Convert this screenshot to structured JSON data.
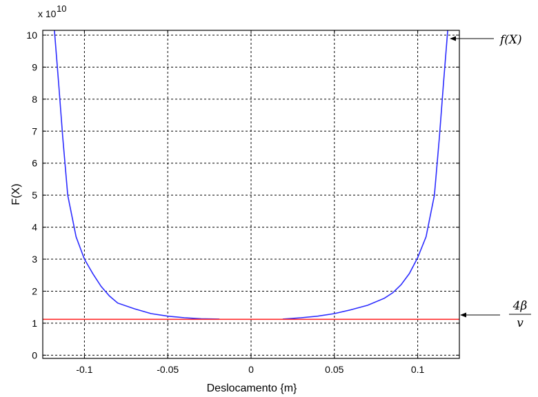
{
  "chart_data": {
    "type": "line",
    "xlabel": "Deslocamento {m}",
    "ylabel": "F(X)",
    "y_multiplier_base": "x 10",
    "y_multiplier_exponent": "10",
    "xlim": [
      -0.125,
      0.125
    ],
    "ylim": [
      -0.1,
      10.15
    ],
    "x_ticks": [
      -0.1,
      -0.05,
      0,
      0.05,
      0.1
    ],
    "x_tick_labels": [
      "-0.1",
      "-0.05",
      "0",
      "0.05",
      "0.1"
    ],
    "y_ticks": [
      0,
      1,
      2,
      3,
      4,
      5,
      6,
      7,
      8,
      9,
      10
    ],
    "y_tick_labels": [
      "0",
      "1",
      "2",
      "3",
      "4",
      "5",
      "6",
      "7",
      "8",
      "9",
      "10"
    ],
    "grid": true,
    "series": [
      {
        "color": "#2b2bff",
        "x": [
          -0.118,
          -0.1155,
          -0.113,
          -0.11,
          -0.105,
          -0.1,
          -0.095,
          -0.09,
          -0.085,
          -0.08,
          -0.07,
          -0.06,
          -0.05,
          -0.04,
          -0.03,
          -0.019
        ],
        "y": [
          10.15,
          8.5,
          6.8,
          5.0,
          3.7,
          3.0,
          2.55,
          2.15,
          1.85,
          1.63,
          1.45,
          1.3,
          1.22,
          1.17,
          1.14,
          1.13
        ]
      },
      {
        "color": "#2b2bff",
        "x": [
          0.019,
          0.03,
          0.04,
          0.05,
          0.06,
          0.07,
          0.08,
          0.085,
          0.09,
          0.095,
          0.1,
          0.105,
          0.11,
          0.113,
          0.1155,
          0.118
        ],
        "y": [
          1.13,
          1.17,
          1.22,
          1.3,
          1.42,
          1.56,
          1.78,
          1.95,
          2.2,
          2.55,
          3.05,
          3.7,
          5.0,
          6.8,
          8.5,
          10.15
        ]
      },
      {
        "color": "#ff2a2a",
        "x": [
          -0.125,
          0.125
        ],
        "y": [
          1.12,
          1.12
        ]
      }
    ],
    "annotations": [
      {
        "label": "f(X)",
        "points_to_x": 0.118,
        "points_to_y": 9.8
      },
      {
        "label_numerator": "4β",
        "label_denominator": "v",
        "points_to_x": 0.125,
        "points_to_y": 1.12
      }
    ]
  }
}
